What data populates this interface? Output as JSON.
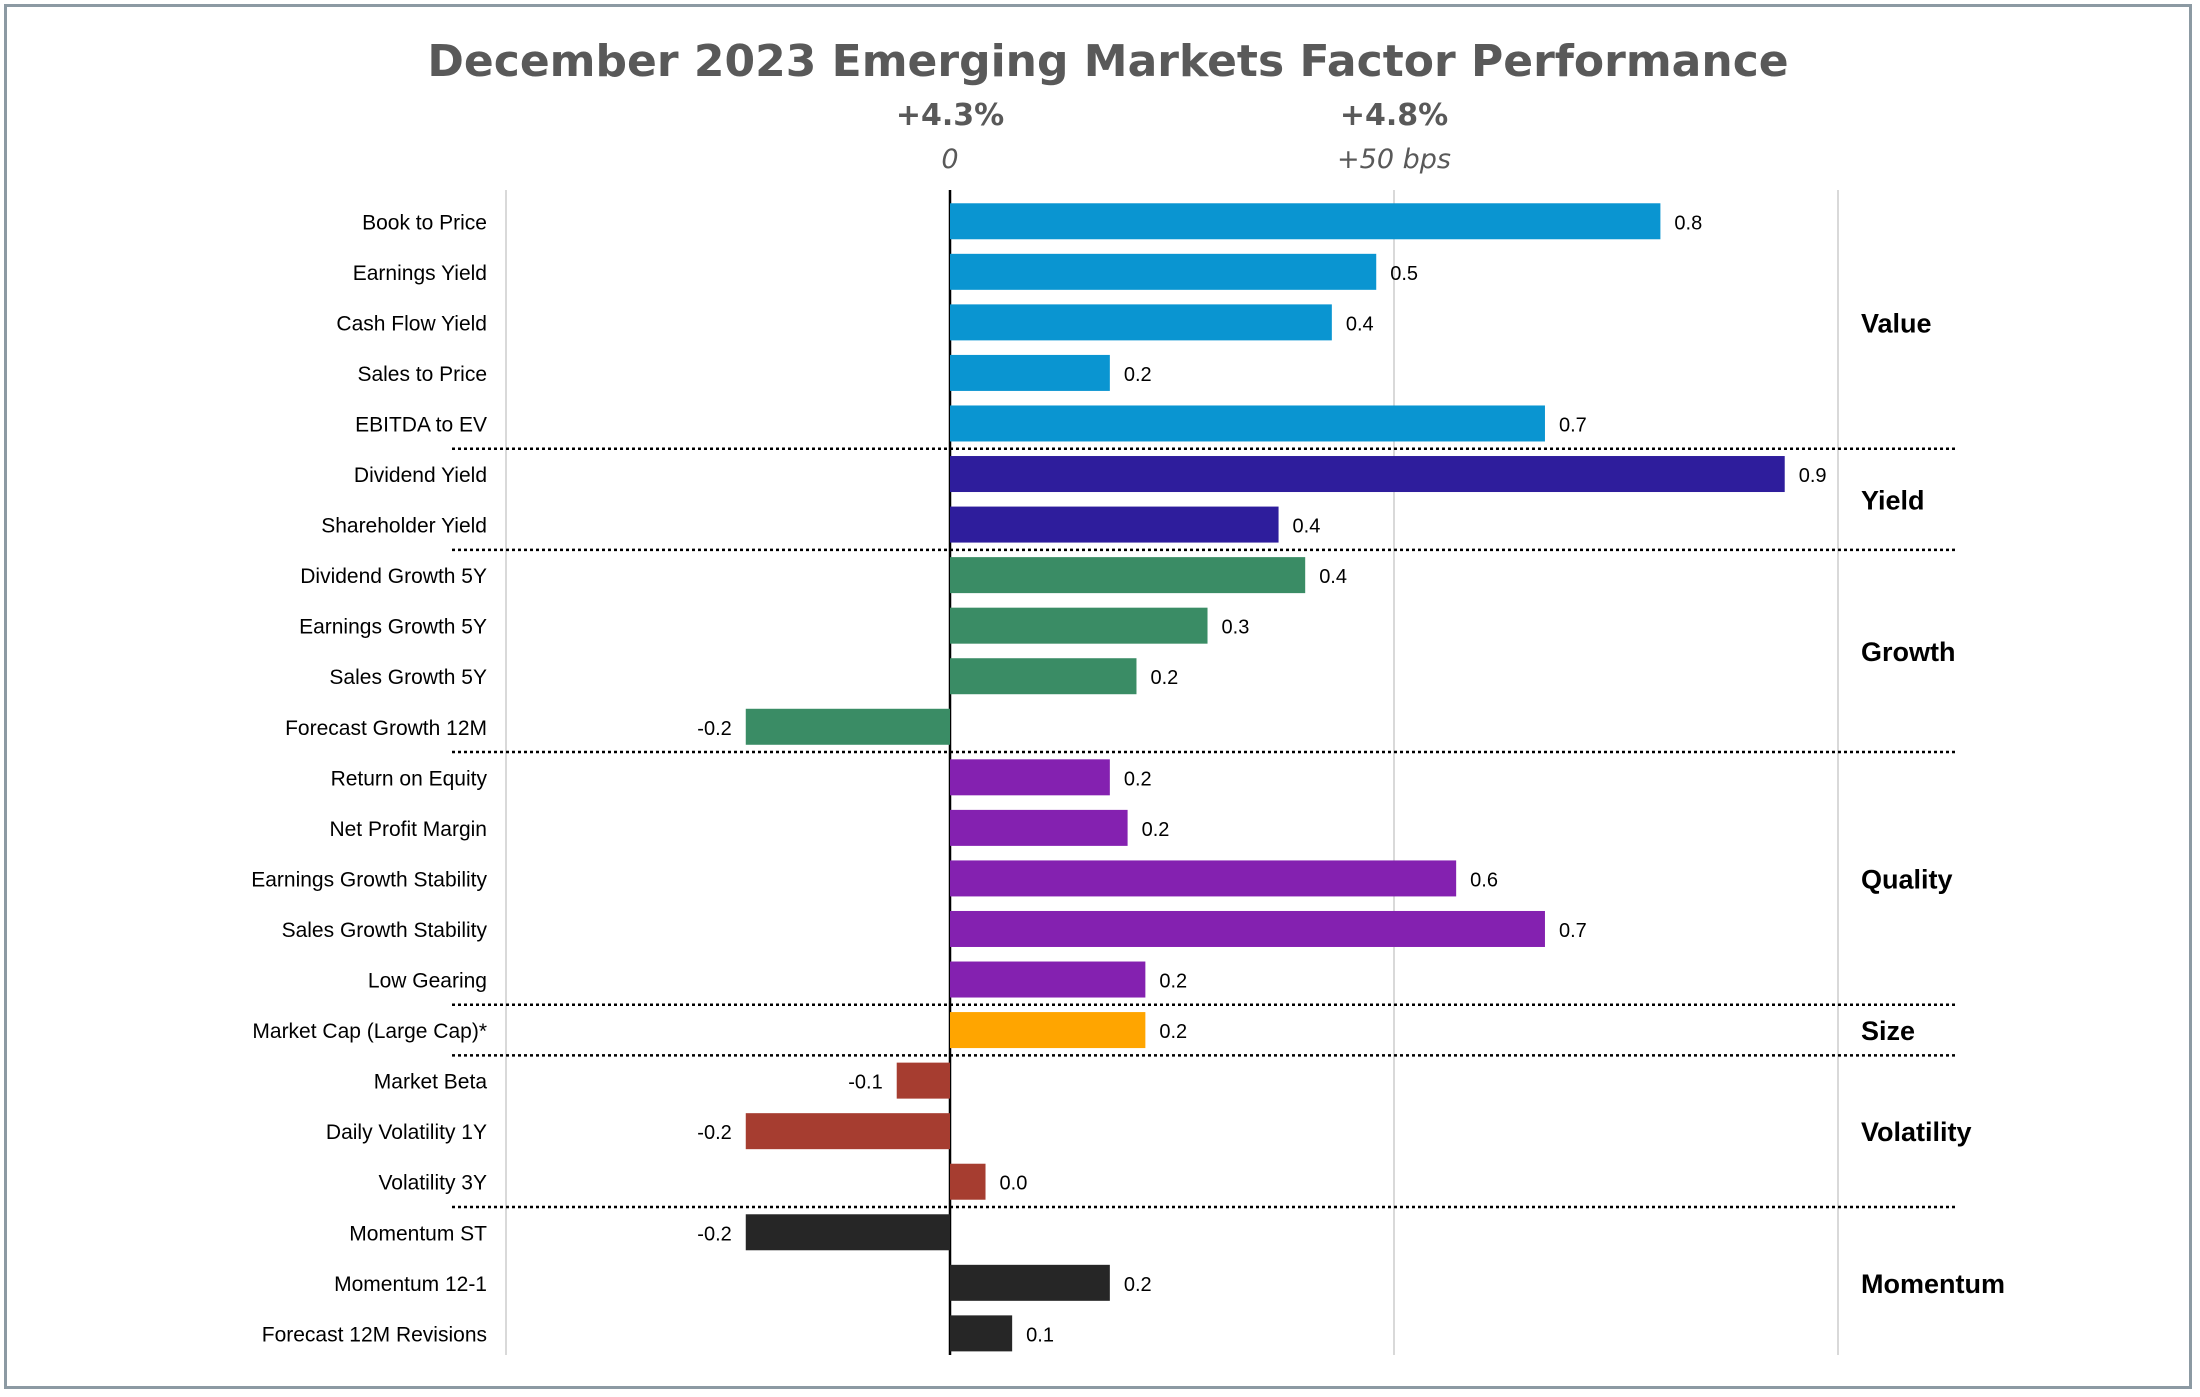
{
  "chart_data": {
    "type": "bar",
    "orientation": "horizontal",
    "title": "December 2023 Emerging Markets Factor Performance",
    "benchmark_labels": [
      {
        "value": 0,
        "top": "+4.3%",
        "bottom": "0"
      },
      {
        "value": 0.5,
        "top": "+4.8%",
        "bottom": "+50 bps"
      }
    ],
    "xlim": [
      -0.5,
      1.0
    ],
    "grid_x": [
      -0.5,
      0.5,
      1.0
    ],
    "categories": [
      "Book to Price",
      "Earnings Yield",
      "Cash Flow Yield",
      "Sales to Price",
      "EBITDA to EV",
      "Dividend Yield",
      "Shareholder Yield",
      "Dividend Growth 5Y",
      "Earnings Growth 5Y",
      "Sales Growth 5Y",
      "Forecast Growth 12M",
      "Return on Equity",
      "Net Profit Margin",
      "Earnings Growth Stability",
      "Sales Growth Stability",
      "Low Gearing",
      "Market Cap (Large Cap)*",
      "Market Beta",
      "Daily Volatility 1Y",
      "Volatility 3Y",
      "Momentum ST",
      "Momentum 12-1",
      "Forecast 12M Revisions"
    ],
    "values": [
      0.8,
      0.48,
      0.43,
      0.18,
      0.67,
      0.94,
      0.37,
      0.4,
      0.29,
      0.21,
      -0.23,
      0.18,
      0.2,
      0.57,
      0.67,
      0.22,
      0.22,
      -0.06,
      -0.23,
      0.04,
      -0.23,
      0.18,
      0.07
    ],
    "data_labels": [
      "0.8",
      "0.5",
      "0.4",
      "0.2",
      "0.7",
      "0.9",
      "0.4",
      "0.4",
      "0.3",
      "0.2",
      "-0.2",
      "0.2",
      "0.2",
      "0.6",
      "0.7",
      "0.2",
      "0.2",
      "-0.1",
      "-0.2",
      "0.0",
      "-0.2",
      "0.2",
      "0.1"
    ],
    "groups": [
      {
        "name": "Value",
        "start": 0,
        "count": 5,
        "color": "#0a95d1"
      },
      {
        "name": "Yield",
        "start": 5,
        "count": 2,
        "color": "#2e1d9c"
      },
      {
        "name": "Growth",
        "start": 7,
        "count": 4,
        "color": "#3a8c65"
      },
      {
        "name": "Quality",
        "start": 11,
        "count": 5,
        "color": "#8421b0"
      },
      {
        "name": "Size",
        "start": 16,
        "count": 1,
        "color": "#ffa500"
      },
      {
        "name": "Volatility",
        "start": 17,
        "count": 3,
        "color": "#a63d30"
      },
      {
        "name": "Momentum",
        "start": 20,
        "count": 3,
        "color": "#262626"
      }
    ]
  }
}
